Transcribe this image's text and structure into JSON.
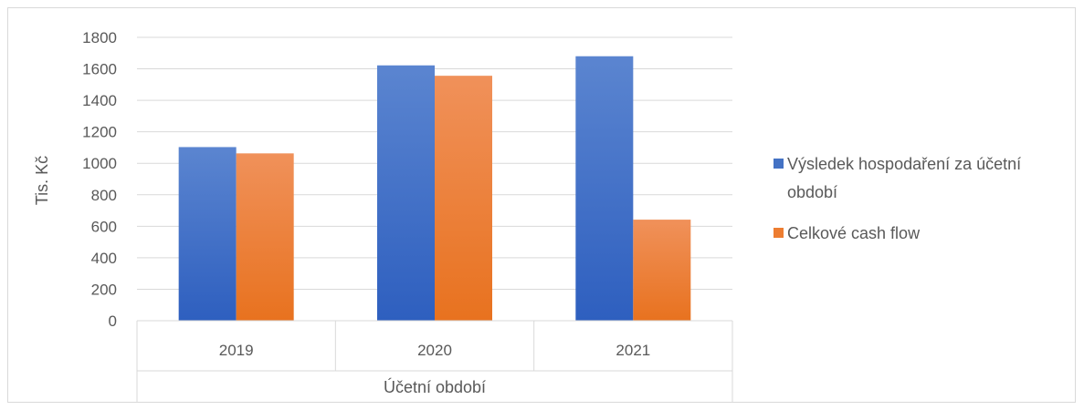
{
  "chart_data": {
    "type": "bar",
    "title": "",
    "categories": [
      "2019",
      "2020",
      "2021"
    ],
    "series": [
      {
        "name": "Výsledek hospodaření za účetní období",
        "values": [
          1103,
          1622,
          1680
        ],
        "color": "#4472C4"
      },
      {
        "name": "Celkové cash flow",
        "values": [
          1063,
          1556,
          642
        ],
        "color": "#ED7D31"
      }
    ],
    "xlabel": "Účetní období",
    "ylabel": "Tis. Kč",
    "ylim": [
      0,
      1800
    ],
    "yticks": [
      0,
      200,
      400,
      600,
      800,
      1000,
      1200,
      1400,
      1600,
      1800
    ],
    "grid": true,
    "legend_position": "right",
    "legend_lines": [
      [
        "Výsledek hospodaření za účetní",
        "období"
      ],
      [
        "Celkové cash flow"
      ]
    ]
  }
}
